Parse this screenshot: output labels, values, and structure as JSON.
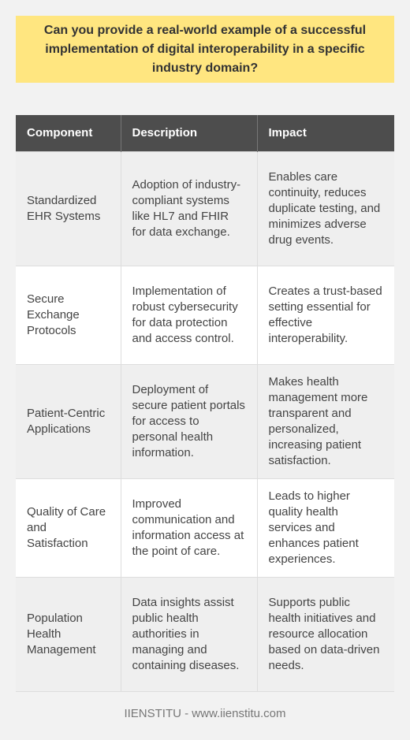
{
  "question": "Can you provide a real-world example of a successful implementation of digital interoperability in a specific industry domain?",
  "table": {
    "headers": [
      "Component",
      "Description",
      "Impact"
    ],
    "rows": [
      {
        "component": "Standardized EHR Systems",
        "description": "Adoption of industry-compliant systems like HL7 and FHIR for data exchange.",
        "impact": "Enables care continuity, reduces duplicate testing, and minimizes adverse drug events."
      },
      {
        "component": "Secure Exchange Protocols",
        "description": "Implementation of robust cybersecurity for data protection and access control.",
        "impact": "Creates a trust-based setting essential for effective interoperability."
      },
      {
        "component": "Patient-Centric Applications",
        "description": "Deployment of secure patient portals for access to personal health information.",
        "impact": "Makes health management more transparent and personalized, increasing patient satisfaction."
      },
      {
        "component": "Quality of Care and Satisfaction",
        "description": "Improved communication and information access at the point of care.",
        "impact": "Leads to higher quality health services and enhances patient experiences."
      },
      {
        "component": "Population Health Management",
        "description": "Data insights assist public health authorities in managing and containing diseases.",
        "impact": "Supports public health initiatives and resource allocation based on data-driven needs."
      }
    ]
  },
  "footer": "IIENSTITU - www.iienstitu.com",
  "colors": {
    "background": "#f2f2f2",
    "question_box": "#ffe680",
    "header_row": "#4d4d4d",
    "stripe": "#efefef"
  }
}
